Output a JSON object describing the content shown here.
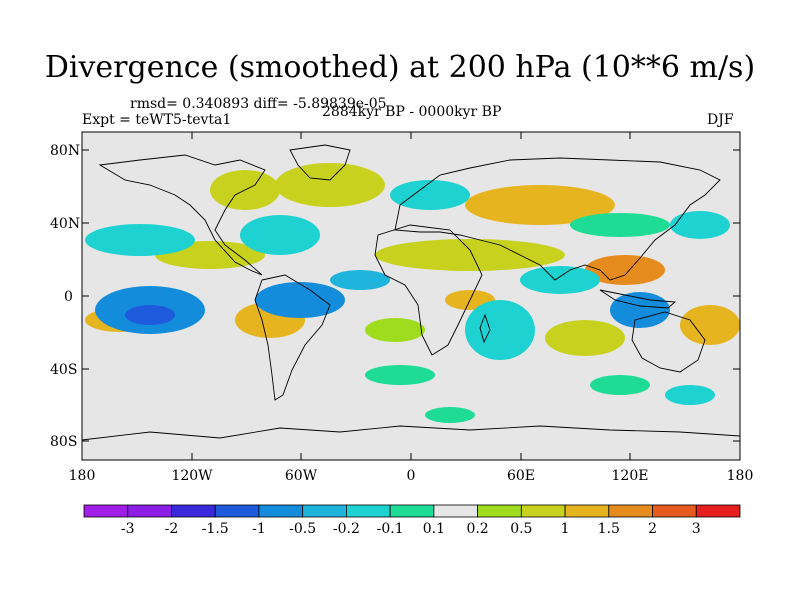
{
  "figure": {
    "title": "Divergence (smoothed) at 200 hPa (10**6 m/s)",
    "stats": "rmsd= 0.340893 diff= -5.89839e-05",
    "expt": "Expt = teWT5-tevta1",
    "period": "2884kyr BP - 0000kyr BP",
    "season": "DJF"
  },
  "axes": {
    "lat_labels": [
      "80N",
      "40N",
      "0",
      "40S",
      "80S"
    ],
    "lon_labels": [
      "180",
      "120W",
      "60W",
      "0",
      "60E",
      "120E",
      "180"
    ]
  },
  "colorbar": {
    "labels": [
      "-3",
      "-2",
      "-1.5",
      "-1",
      "-0.5",
      "-0.2",
      "-0.1",
      "0.1",
      "0.2",
      "0.5",
      "1",
      "1.5",
      "2",
      "3"
    ],
    "colors": [
      "#8c1ee6",
      "#3c28dc",
      "#1e5adc",
      "#148cdc",
      "#1eb4dc",
      "#1ed2d2",
      "#1edc96",
      "#e6e6e6",
      "#a0dc1e",
      "#c8d21e",
      "#e6b41e",
      "#e68c1e",
      "#e65a1e",
      "#e61e1e"
    ]
  }
}
